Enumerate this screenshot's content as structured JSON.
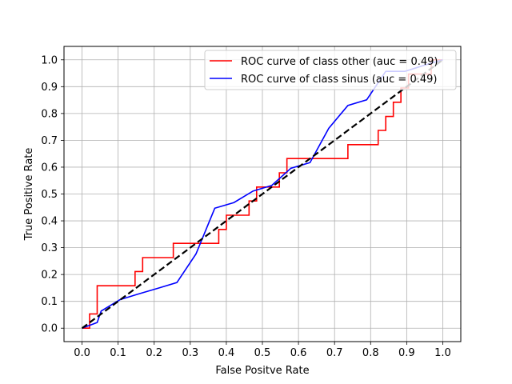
{
  "chart_data": {
    "type": "line",
    "title": "",
    "xlabel": "False Positve Rate",
    "ylabel": "True Positive Rate",
    "xlim": [
      -0.05,
      1.05
    ],
    "ylim": [
      -0.05,
      1.05
    ],
    "xticks": [
      0.0,
      0.1,
      0.2,
      0.3,
      0.4,
      0.5,
      0.6,
      0.7,
      0.8,
      0.9,
      1.0
    ],
    "yticks": [
      0.0,
      0.1,
      0.2,
      0.3,
      0.4,
      0.5,
      0.6,
      0.7,
      0.8,
      0.9,
      1.0
    ],
    "xtick_labels": [
      "0.0",
      "0.1",
      "0.2",
      "0.3",
      "0.4",
      "0.5",
      "0.6",
      "0.7",
      "0.8",
      "0.9",
      "1.0"
    ],
    "ytick_labels": [
      "0.0",
      "0.1",
      "0.2",
      "0.3",
      "0.4",
      "0.5",
      "0.6",
      "0.7",
      "0.8",
      "0.9",
      "1.0"
    ],
    "grid": true,
    "legend_position": "upper-right",
    "series": [
      {
        "name": "ROC curve of class other (auc = 0.49)",
        "color": "#ff0000",
        "style": "step",
        "x": [
          0.0,
          0.021,
          0.021,
          0.042,
          0.042,
          0.147,
          0.147,
          0.168,
          0.168,
          0.253,
          0.253,
          0.379,
          0.379,
          0.4,
          0.4,
          0.421,
          0.421,
          0.463,
          0.463,
          0.484,
          0.484,
          0.526,
          0.526,
          0.547,
          0.547,
          0.568,
          0.568,
          0.611,
          0.611,
          0.653,
          0.653,
          0.695,
          0.695,
          0.737,
          0.737,
          0.821,
          0.821,
          0.842,
          0.842,
          0.863,
          0.863,
          0.884,
          0.884,
          0.905,
          0.905,
          0.926,
          0.926,
          0.947,
          0.947,
          0.968,
          0.968,
          1.0
        ],
        "y": [
          0.0,
          0.0,
          0.053,
          0.053,
          0.158,
          0.158,
          0.211,
          0.211,
          0.263,
          0.263,
          0.316,
          0.316,
          0.368,
          0.368,
          0.421,
          0.421,
          0.421,
          0.421,
          0.474,
          0.474,
          0.526,
          0.526,
          0.526,
          0.526,
          0.579,
          0.579,
          0.632,
          0.632,
          0.632,
          0.632,
          0.632,
          0.632,
          0.632,
          0.632,
          0.684,
          0.684,
          0.737,
          0.737,
          0.789,
          0.789,
          0.842,
          0.842,
          0.895,
          0.895,
          0.947,
          0.947,
          0.947,
          0.947,
          0.947,
          0.947,
          1.0,
          1.0
        ]
      },
      {
        "name": "ROC curve of class sinus (auc = 0.49)",
        "color": "#0000ff",
        "style": "step",
        "x": [
          0.0,
          0.042,
          0.042,
          0.053,
          0.053,
          0.105,
          0.105,
          0.158,
          0.158,
          0.211,
          0.211,
          0.263,
          0.263,
          0.316,
          0.316,
          0.368,
          0.368,
          0.421,
          0.421,
          0.474,
          0.474,
          0.526,
          0.526,
          0.579,
          0.579,
          0.632,
          0.632,
          0.684,
          0.684,
          0.737,
          0.737,
          0.789,
          0.789,
          0.842,
          0.842,
          0.895,
          0.895,
          0.947,
          0.947,
          1.0
        ],
        "y": [
          0.0,
          0.021,
          0.021,
          0.064,
          0.064,
          0.106,
          0.106,
          0.128,
          0.128,
          0.149,
          0.149,
          0.17,
          0.17,
          0.277,
          0.277,
          0.447,
          0.447,
          0.468,
          0.468,
          0.511,
          0.511,
          0.532,
          0.532,
          0.596,
          0.596,
          0.617,
          0.617,
          0.745,
          0.745,
          0.83,
          0.83,
          0.851,
          0.851,
          0.957,
          0.957,
          0.957,
          0.957,
          0.979,
          0.979,
          1.0
        ]
      },
      {
        "name": "",
        "color": "#000000",
        "style": "dashed",
        "x": [
          0.0,
          1.0
        ],
        "y": [
          0.0,
          1.0
        ]
      }
    ]
  }
}
